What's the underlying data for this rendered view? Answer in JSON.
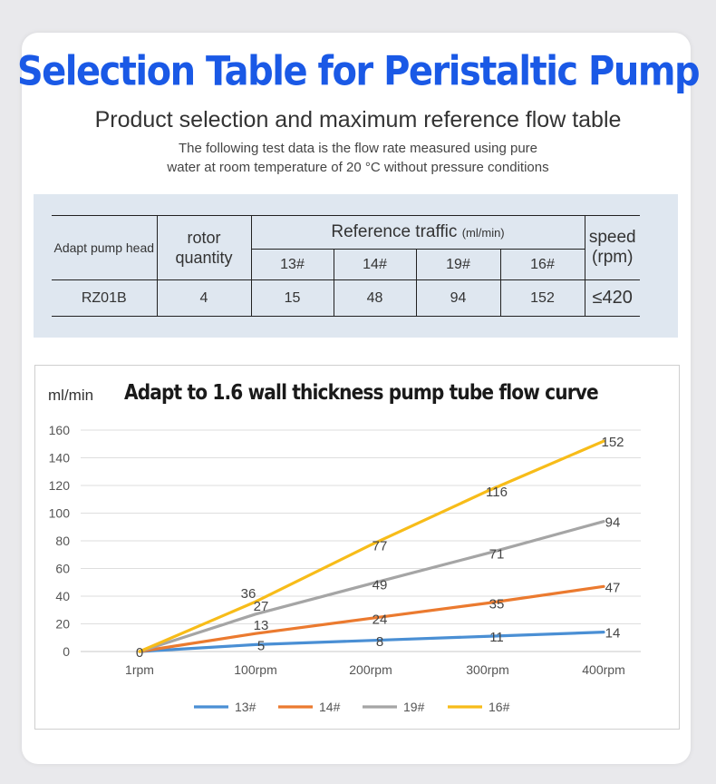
{
  "header": {
    "title": "Selection Table for Peristaltic Pump",
    "subtitle": "Product selection and maximum reference flow table",
    "note_line1": "The following test data is the flow rate measured using pure",
    "note_line2": "water at room temperature of 20 °C without pressure conditions"
  },
  "table": {
    "col_pump_head": "Adapt pump head",
    "col_rotor_line1": "rotor",
    "col_rotor_line2": "quantity",
    "col_reference": "Reference traffic",
    "col_reference_unit": "(ml/min)",
    "col_speed_line1": "speed",
    "col_speed_line2": "(rpm)",
    "tubes": [
      "13#",
      "14#",
      "19#",
      "16#"
    ],
    "row": {
      "pump_head": "RZ01B",
      "rotor_quantity": "4",
      "flows": [
        "15",
        "48",
        "94",
        "152"
      ],
      "speed": "≤420"
    }
  },
  "chart_data": {
    "type": "line",
    "title": "Adapt to 1.6 wall thickness pump tube flow curve",
    "ylabel": "ml/min",
    "xlabel": "",
    "categories": [
      "1rpm",
      "100rpm",
      "200rpm",
      "300rpm",
      "400rpm"
    ],
    "ylim": [
      0,
      160
    ],
    "yticks": [
      0,
      20,
      40,
      60,
      80,
      100,
      120,
      140,
      160
    ],
    "grid": true,
    "legend_position": "bottom",
    "series": [
      {
        "name": "13#",
        "color": "#4a8fd4",
        "values": [
          0,
          5,
          8,
          11,
          14
        ]
      },
      {
        "name": "14#",
        "color": "#eb7a2f",
        "values": [
          0,
          13,
          24,
          35,
          47
        ]
      },
      {
        "name": "19#",
        "color": "#a5a5a5",
        "values": [
          0,
          27,
          49,
          71,
          94
        ]
      },
      {
        "name": "16#",
        "color": "#f7bc19",
        "values": [
          0,
          36,
          77,
          116,
          152
        ]
      }
    ]
  }
}
